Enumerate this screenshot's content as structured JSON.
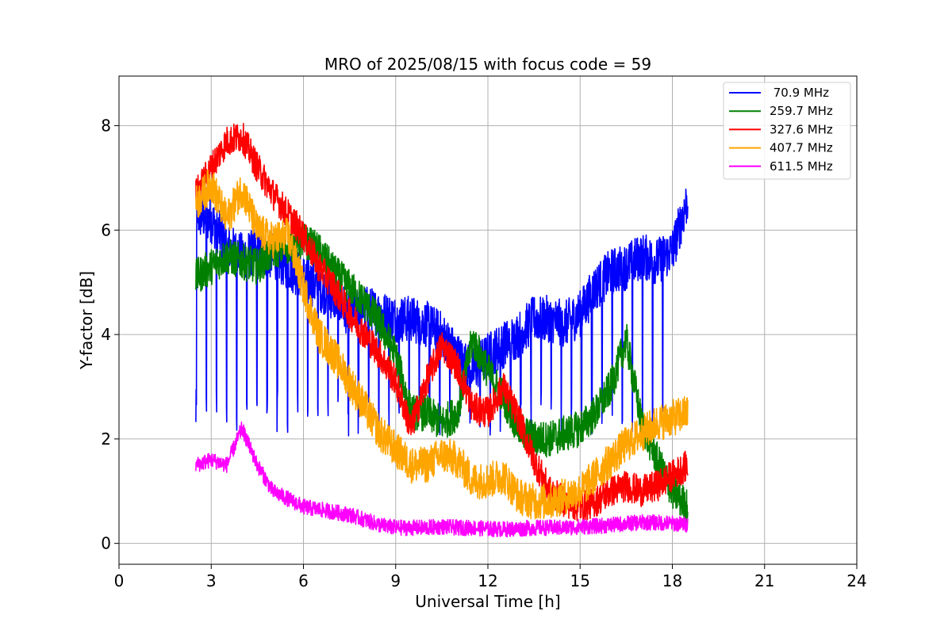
{
  "chart_data": {
    "type": "line",
    "title": "MRO of 2025/08/15 with focus code = 59",
    "xlabel": "Universal Time [h]",
    "ylabel": "Y-factor [dB]",
    "xlim": [
      0,
      24
    ],
    "ylim": [
      -0.4,
      8.95
    ],
    "xticks": [
      0,
      3,
      6,
      9,
      12,
      15,
      18,
      21,
      24
    ],
    "yticks": [
      0,
      2,
      4,
      6,
      8
    ],
    "grid": true,
    "legend_position": "top-right",
    "series": [
      {
        "name": " 70.9 MHz",
        "color": "#0000ff",
        "x": [
          2.5,
          3.0,
          3.5,
          4.0,
          4.5,
          5.0,
          5.5,
          6.0,
          6.5,
          7.0,
          7.5,
          8.0,
          8.5,
          9.0,
          9.5,
          10.0,
          10.5,
          11.0,
          11.5,
          12.0,
          12.5,
          13.0,
          13.5,
          14.0,
          14.5,
          15.0,
          15.5,
          16.0,
          16.5,
          17.0,
          17.5,
          18.0,
          18.5
        ],
        "y": [
          6.3,
          6.2,
          5.7,
          5.5,
          5.6,
          5.5,
          5.3,
          5.1,
          4.9,
          4.7,
          4.4,
          4.5,
          4.4,
          4.3,
          4.3,
          4.2,
          4.0,
          3.6,
          3.3,
          3.6,
          3.8,
          4.0,
          4.3,
          4.3,
          4.2,
          4.4,
          4.9,
          5.2,
          5.3,
          5.5,
          5.4,
          5.6,
          6.6
        ],
        "dip_low": 2.5,
        "dip_period_h": 0.33
      },
      {
        "name": "259.7 MHz",
        "color": "#008000",
        "x": [
          2.5,
          3.0,
          3.5,
          4.0,
          4.5,
          5.0,
          5.5,
          6.0,
          6.5,
          7.0,
          7.5,
          8.0,
          8.5,
          9.0,
          9.5,
          10.0,
          10.5,
          11.0,
          11.5,
          12.0,
          12.5,
          13.0,
          13.5,
          14.0,
          14.5,
          15.0,
          15.5,
          16.0,
          16.5,
          17.0,
          17.5,
          18.0,
          18.5
        ],
        "y": [
          5.1,
          5.3,
          5.5,
          5.4,
          5.3,
          5.6,
          5.7,
          5.8,
          5.6,
          5.2,
          4.9,
          4.6,
          4.2,
          3.6,
          2.5,
          2.5,
          2.3,
          2.5,
          3.9,
          3.3,
          2.8,
          2.2,
          2.0,
          2.0,
          2.1,
          2.2,
          2.5,
          3.0,
          3.9,
          2.3,
          1.6,
          1.0,
          0.7
        ]
      },
      {
        "name": "327.6 MHz",
        "color": "#ff0000",
        "x": [
          2.5,
          3.0,
          3.5,
          4.0,
          4.5,
          5.0,
          5.5,
          6.0,
          6.5,
          7.0,
          7.5,
          8.0,
          8.5,
          9.0,
          9.5,
          10.0,
          10.5,
          11.0,
          11.5,
          12.0,
          12.5,
          13.0,
          13.5,
          14.0,
          14.5,
          15.0,
          15.5,
          16.0,
          16.5,
          17.0,
          17.5,
          18.0,
          18.5
        ],
        "y": [
          6.7,
          7.2,
          7.7,
          7.8,
          7.2,
          6.7,
          6.3,
          5.9,
          5.3,
          4.9,
          4.4,
          4.0,
          3.6,
          3.1,
          2.2,
          3.1,
          3.8,
          3.4,
          2.6,
          2.5,
          3.0,
          2.4,
          1.6,
          1.0,
          0.8,
          0.7,
          0.8,
          1.0,
          1.1,
          1.0,
          1.1,
          1.3,
          1.5
        ]
      },
      {
        "name": "407.7 MHz",
        "color": "#ffa500",
        "x": [
          2.5,
          3.0,
          3.5,
          4.0,
          4.5,
          5.0,
          5.5,
          6.0,
          6.5,
          7.0,
          7.5,
          8.0,
          8.5,
          9.0,
          9.5,
          10.0,
          10.5,
          11.0,
          11.5,
          12.0,
          12.5,
          13.0,
          13.5,
          14.0,
          14.5,
          15.0,
          15.5,
          16.0,
          16.5,
          17.0,
          17.5,
          18.0,
          18.5
        ],
        "y": [
          6.5,
          6.9,
          6.2,
          6.8,
          6.0,
          5.8,
          5.9,
          4.9,
          4.0,
          3.6,
          3.1,
          2.6,
          2.1,
          1.8,
          1.5,
          1.5,
          1.7,
          1.6,
          1.2,
          1.2,
          1.3,
          0.9,
          0.8,
          0.8,
          0.9,
          1.0,
          1.3,
          1.6,
          1.9,
          2.1,
          2.3,
          2.4,
          2.5
        ]
      },
      {
        "name": "611.5 MHz",
        "color": "#ff00ff",
        "x": [
          2.5,
          3.0,
          3.5,
          4.0,
          4.5,
          5.0,
          5.5,
          6.0,
          6.5,
          7.0,
          7.5,
          8.0,
          8.5,
          9.0,
          9.5,
          10.0,
          10.5,
          11.0,
          11.5,
          12.0,
          12.5,
          13.0,
          13.5,
          14.0,
          14.5,
          15.0,
          15.5,
          16.0,
          16.5,
          17.0,
          17.5,
          18.0,
          18.5
        ],
        "y": [
          1.5,
          1.6,
          1.5,
          2.2,
          1.5,
          1.0,
          0.85,
          0.7,
          0.65,
          0.6,
          0.55,
          0.45,
          0.35,
          0.3,
          0.3,
          0.3,
          0.32,
          0.3,
          0.3,
          0.28,
          0.27,
          0.28,
          0.3,
          0.3,
          0.3,
          0.32,
          0.33,
          0.35,
          0.38,
          0.4,
          0.4,
          0.38,
          0.36
        ]
      }
    ]
  }
}
